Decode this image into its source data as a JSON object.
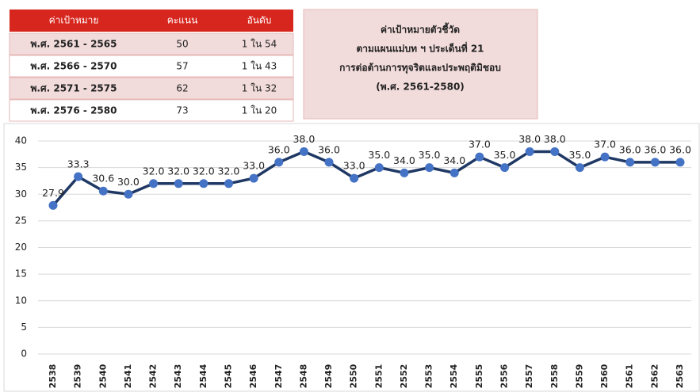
{
  "table": {
    "header": [
      "ค่าเป้าหมาย",
      "คะแนน",
      "อันดับ"
    ],
    "rows": [
      [
        "พ.ศ. 2561 - 2565",
        50,
        "1 ใน 54"
      ],
      [
        "พ.ศ. 2566 - 2570",
        57,
        "1 ใน 43"
      ],
      [
        "พ.ศ. 2571 - 2575",
        62,
        "1 ใน 32"
      ],
      [
        "พ.ศ. 2576 - 2580",
        73,
        "1 ใน 20"
      ]
    ]
  },
  "info_box": {
    "lines": [
      "ค่าเป้าหมายตัวชี้วัด",
      "ตามแผนแม่บท ฯ ประเด็นที่ 21",
      "การต่อต้านการทุจริตและประพฤติมิชอบ",
      "(พ.ศ. 2561-2580)"
    ]
  },
  "chart_data": {
    "type": "line",
    "categories": [
      "2538",
      "2539",
      "2540",
      "2541",
      "2542",
      "2543",
      "2544",
      "2545",
      "2546",
      "2547",
      "2548",
      "2549",
      "2550",
      "2551",
      "2552",
      "2553",
      "2554",
      "2555",
      "2556",
      "2557",
      "2558",
      "2559",
      "2560",
      "2561",
      "2562",
      "2563"
    ],
    "values": [
      27.9,
      33.3,
      30.6,
      30.0,
      32.0,
      32.0,
      32.0,
      32.0,
      33.0,
      36.0,
      38.0,
      36.0,
      33.0,
      35.0,
      34.0,
      35.0,
      34.0,
      37.0,
      35.0,
      38.0,
      38.0,
      35.0,
      37.0,
      36.0,
      36.0,
      36.0
    ],
    "value_labels": [
      "27.9",
      "33.3",
      "30.6",
      "30.0",
      "32.0",
      "32.0",
      "32.0",
      "32.0",
      "33.0",
      "36.0",
      "38.0",
      "36.0",
      "33.0",
      "35.0",
      "34.0",
      "35.0",
      "34.0",
      "37.0",
      "35.0",
      "38.0",
      "38.0",
      "35.0",
      "37.0",
      "36.0",
      "36.0",
      "36.0"
    ],
    "color": "#1f3864",
    "marker_color": "#4472c4",
    "ylim": [
      0,
      40
    ],
    "yticks": [
      0,
      5,
      10,
      15,
      20,
      25,
      30,
      35,
      40
    ],
    "grid": true
  }
}
